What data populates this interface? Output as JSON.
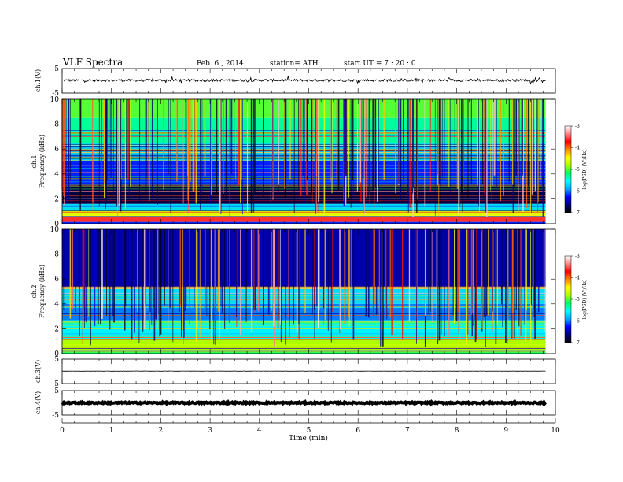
{
  "header": {
    "title": "VLF  Spectra",
    "date": "Feb. 6  , 2014",
    "station": "station= ATH",
    "start": "start  UT  =   7  : 20 : 0"
  },
  "colorbar_label": "log(PSD) (V²/Hz)",
  "colorbar_stops": [
    "#000000",
    "#00007a",
    "#0000ff",
    "#00aaff",
    "#00ffff",
    "#00ff66",
    "#aaff00",
    "#ffff00",
    "#ff8800",
    "#ff0000",
    "#ff8888",
    "#ffffff"
  ],
  "trace_color": "#000000",
  "chart_data": [
    {
      "name": "ch.1 waveform",
      "type": "line",
      "ylabel": "ch.1(V)",
      "ylim": [
        -5,
        5
      ],
      "yticks": [
        "5",
        "-5"
      ],
      "xlim": [
        0,
        10
      ],
      "data_end_min": 9.8,
      "series": [
        {
          "name": "ch.1",
          "mean_v": 0.2,
          "noise_v": 0.5
        }
      ]
    },
    {
      "name": "ch.1 spectrogram",
      "type": "heatmap",
      "ylabel": "ch.1\nFrequency  (kHz)",
      "ylim": [
        0,
        10
      ],
      "yticks": [
        "0",
        "2",
        "4",
        "6",
        "8",
        "10"
      ],
      "xlim": [
        0,
        10
      ],
      "data_end_min": 9.8,
      "colorbar": {
        "ticks": [
          "-3",
          "-4",
          "-5",
          "-6",
          "-7"
        ],
        "range": [
          -7,
          -3
        ]
      },
      "bands_khz": [
        {
          "from": 0.0,
          "to": 0.15,
          "log_psd": -6.2
        },
        {
          "from": 0.15,
          "to": 0.55,
          "log_psd": -3.6
        },
        {
          "from": 0.55,
          "to": 1.0,
          "log_psd": -4.6
        },
        {
          "from": 1.0,
          "to": 1.6,
          "log_psd": -5.7
        },
        {
          "from": 1.6,
          "to": 3.2,
          "log_psd": -6.8
        },
        {
          "from": 3.2,
          "to": 5.0,
          "log_psd": -6.2
        },
        {
          "from": 5.0,
          "to": 6.5,
          "log_psd": -5.8
        },
        {
          "from": 6.5,
          "to": 8.5,
          "log_psd": -5.3
        },
        {
          "from": 8.5,
          "to": 10.0,
          "log_psd": -5.0
        }
      ]
    },
    {
      "name": "ch.2 spectrogram",
      "type": "heatmap",
      "ylabel": "ch.2\nFrequency  (kHz)",
      "ylim": [
        0,
        10
      ],
      "yticks": [
        "0",
        "2",
        "4",
        "6",
        "8",
        "10"
      ],
      "xlim": [
        0,
        10
      ],
      "data_end_min": 9.8,
      "colorbar": {
        "ticks": [
          "-3",
          "-4",
          "-5",
          "-6",
          "-7"
        ],
        "range": [
          -7,
          -3
        ]
      },
      "bands_khz": [
        {
          "from": 0.0,
          "to": 0.3,
          "log_psd": -5.2
        },
        {
          "from": 0.3,
          "to": 1.2,
          "log_psd": -4.8
        },
        {
          "from": 1.2,
          "to": 2.6,
          "log_psd": -5.6
        },
        {
          "from": 2.6,
          "to": 4.0,
          "log_psd": -6.0
        },
        {
          "from": 4.0,
          "to": 5.2,
          "log_psd": -5.7
        },
        {
          "from": 5.2,
          "to": 10.0,
          "log_psd": -6.5
        }
      ]
    },
    {
      "name": "ch.3 waveform",
      "type": "line",
      "ylabel": "ch.3(V)",
      "ylim": [
        -5,
        5
      ],
      "yticks": [
        "5",
        "-5"
      ],
      "xlim": [
        0,
        10
      ],
      "data_end_min": 9.8,
      "series": [
        {
          "name": "ch.3",
          "mean_v": 0.1,
          "noise_v": 0.05
        }
      ]
    },
    {
      "name": "ch.4 waveform",
      "type": "line",
      "ylabel": "ch.4(V)",
      "ylim": [
        -5,
        5
      ],
      "yticks": [
        "5",
        "-5"
      ],
      "xlim": [
        0,
        10
      ],
      "data_end_min": 9.8,
      "series": [
        {
          "name": "ch.4",
          "mean_v": 0.0,
          "noise_v": 0.3
        }
      ]
    }
  ],
  "x_axis": {
    "label": "Time  (min)",
    "ticks": [
      "0",
      "1",
      "2",
      "3",
      "4",
      "5",
      "6",
      "7",
      "8",
      "9",
      "10"
    ]
  }
}
